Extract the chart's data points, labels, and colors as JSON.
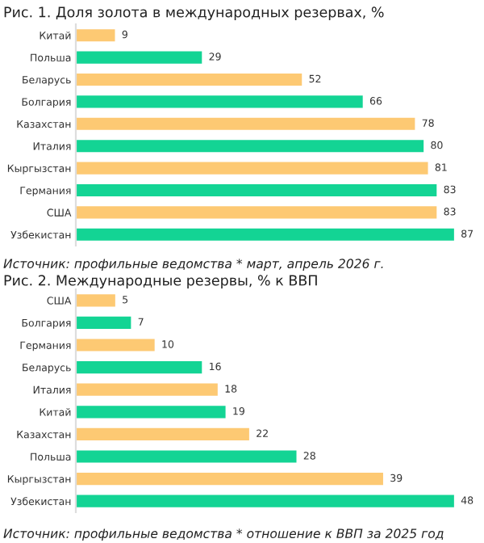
{
  "chart_data": [
    {
      "type": "bar",
      "orientation": "horizontal",
      "title": "Рис. 1. Доля золота в международных резервах, %",
      "categories": [
        "Китай",
        "Польша",
        "Беларусь",
        "Болгария",
        "Казахстан",
        "Италия",
        "Кыргызстан",
        "Германия",
        "США",
        "Узбекистан"
      ],
      "values": [
        9,
        29,
        52,
        66,
        78,
        80,
        81,
        83,
        83,
        87
      ],
      "colors": [
        "#fdc973",
        "#13d494",
        "#fdc973",
        "#13d494",
        "#fdc973",
        "#13d494",
        "#fdc973",
        "#13d494",
        "#fdc973",
        "#13d494"
      ],
      "data_labels": true,
      "tick_labels": "y",
      "grid": false,
      "legend": false,
      "annotations": [
        "Источник: профильные ведомства * март, апрель 2026 г."
      ]
    },
    {
      "type": "bar",
      "orientation": "horizontal",
      "title": "Рис. 2. Международные резервы, % к ВВП",
      "categories": [
        "США",
        "Болгария",
        "Германия",
        "Беларусь",
        "Италия",
        "Китай",
        "Казахстан",
        "Польша",
        "Кыргызстан",
        "Узбекистан"
      ],
      "values": [
        5,
        7,
        10,
        16,
        18,
        19,
        22,
        28,
        39,
        48
      ],
      "colors": [
        "#fdc973",
        "#13d494",
        "#fdc973",
        "#13d494",
        "#fdc973",
        "#13d494",
        "#fdc973",
        "#13d494",
        "#fdc973",
        "#13d494"
      ],
      "data_labels": true,
      "tick_labels": "y",
      "grid": false,
      "legend": false,
      "annotations": [
        "Источник: профильные ведомства * отношение к ВВП за 2025 год"
      ]
    }
  ]
}
